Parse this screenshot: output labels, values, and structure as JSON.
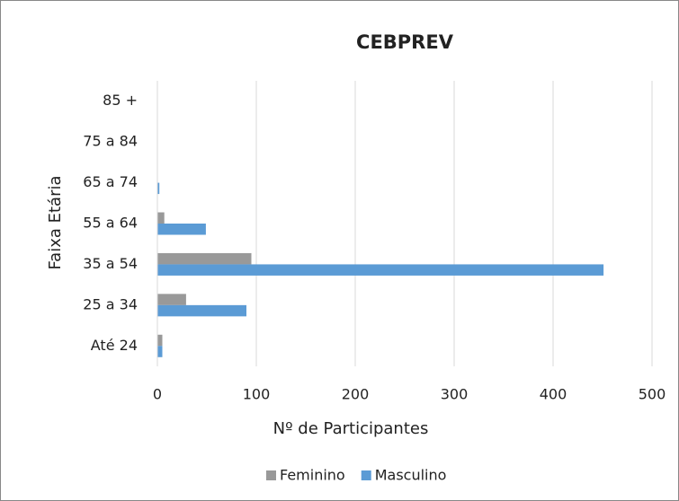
{
  "chart_data": {
    "type": "bar",
    "orientation": "horizontal",
    "title": "CEBPREV",
    "x_label": "Nº de Participantes",
    "y_label": "Faixa Etária",
    "categories": [
      "Até 24",
      "25 a 34",
      "35 a 54",
      "55 a 64",
      "65 a 74",
      "75 a 84",
      "85 +"
    ],
    "series": [
      {
        "name": "Feminino",
        "color": "#999999",
        "values": [
          5,
          29,
          95,
          7,
          0,
          0,
          0
        ]
      },
      {
        "name": "Masculino",
        "color": "#5b9bd5",
        "values": [
          5,
          90,
          451,
          49,
          2,
          0,
          0
        ]
      }
    ],
    "xlim": [
      0,
      500
    ],
    "xticks": [
      0,
      100,
      200,
      300,
      400,
      500
    ],
    "grid": true,
    "legend": "bottom"
  }
}
